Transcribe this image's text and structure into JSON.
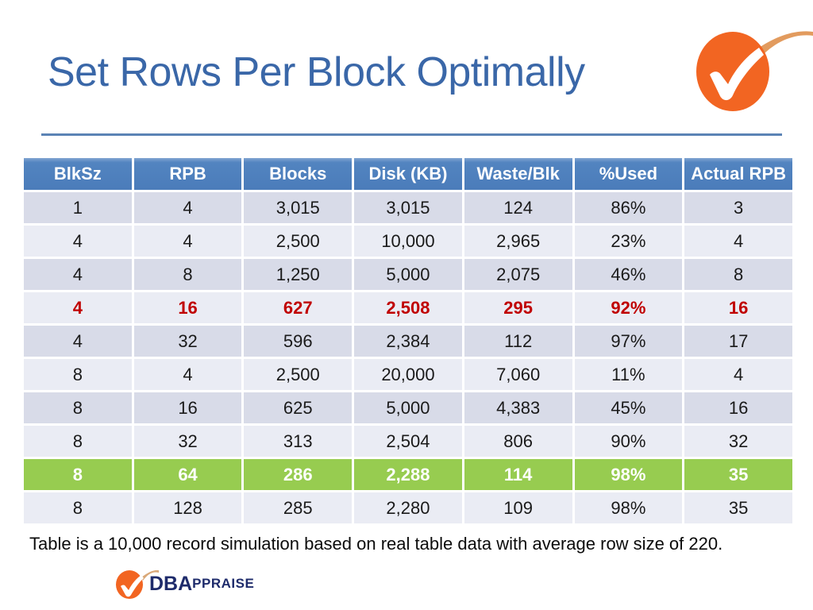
{
  "title": "Set Rows Per Block Optimally",
  "caption": "Table is a 10,000 record simulation based on real table data with average row size of 220.",
  "footer_logo": {
    "brand_bold": "DBA",
    "brand_rest": "PPRAISE"
  },
  "icons": {
    "top_right": "orange-circle-checkmark-logo",
    "footer": "orange-circle-checkmark-logo-small"
  },
  "colors": {
    "title_text": "#3A67A8",
    "title_rule": "#5B83B5",
    "header_bg": "#4B7CBA",
    "row_band_dark": "#D8DBE8",
    "row_band_light": "#EAECF4",
    "highlight_red_text": "#C00000",
    "highlight_green_bg": "#97CC50",
    "logo_orange": "#F26522",
    "logo_navy": "#1E2B6B"
  },
  "chart_data": {
    "type": "table",
    "title": "Set Rows Per Block Optimally",
    "headers": [
      "BlkSz",
      "RPB",
      "Blocks",
      "Disk (KB)",
      "Waste/Blk",
      "%Used",
      "Actual RPB"
    ],
    "rows": [
      {
        "cells": [
          "1",
          "4",
          "3,015",
          "3,015",
          "124",
          "86%",
          "3"
        ],
        "highlight": "none"
      },
      {
        "cells": [
          "4",
          "4",
          "2,500",
          "10,000",
          "2,965",
          "23%",
          "4"
        ],
        "highlight": "none"
      },
      {
        "cells": [
          "4",
          "8",
          "1,250",
          "5,000",
          "2,075",
          "46%",
          "8"
        ],
        "highlight": "none"
      },
      {
        "cells": [
          "4",
          "16",
          "627",
          "2,508",
          "295",
          "92%",
          "16"
        ],
        "highlight": "red-text"
      },
      {
        "cells": [
          "4",
          "32",
          "596",
          "2,384",
          "112",
          "97%",
          "17"
        ],
        "highlight": "none"
      },
      {
        "cells": [
          "8",
          "4",
          "2,500",
          "20,000",
          "7,060",
          "11%",
          "4"
        ],
        "highlight": "none"
      },
      {
        "cells": [
          "8",
          "16",
          "625",
          "5,000",
          "4,383",
          "45%",
          "16"
        ],
        "highlight": "none"
      },
      {
        "cells": [
          "8",
          "32",
          "313",
          "2,504",
          "806",
          "90%",
          "32"
        ],
        "highlight": "none"
      },
      {
        "cells": [
          "8",
          "64",
          "286",
          "2,288",
          "114",
          "98%",
          "35"
        ],
        "highlight": "green-row"
      },
      {
        "cells": [
          "8",
          "128",
          "285",
          "2,280",
          "109",
          "98%",
          "35"
        ],
        "highlight": "none"
      }
    ]
  }
}
